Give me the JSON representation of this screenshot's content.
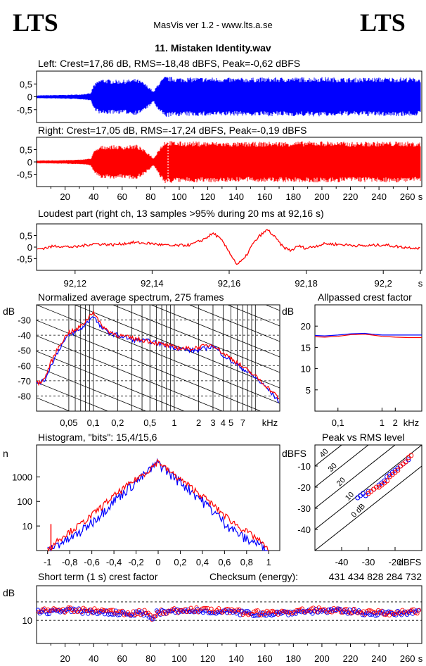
{
  "header": {
    "logo_left": "LTS",
    "logo_right": "LTS",
    "app": "MasVis ver 1.2 - www.lts.a.se",
    "track_title": "11. Mistaken Identity.wav"
  },
  "colors": {
    "left": "#0000ff",
    "right": "#ff0000",
    "axis": "#000000"
  },
  "chart_data": [
    {
      "id": "left-waveform",
      "type": "line",
      "title": "Left: Crest=17,86 dB, RMS=-18,48 dBFS, Peak=-0,62 dBFS",
      "xlim": [
        0,
        270
      ],
      "ylim": [
        -1,
        1
      ],
      "yticks": [
        "0,5",
        "0",
        "-0,5"
      ],
      "envelope_x": [
        0,
        10,
        20,
        30,
        38,
        40,
        45,
        50,
        55,
        60,
        65,
        70,
        75,
        80,
        82,
        85,
        90,
        95,
        100,
        120,
        140,
        160,
        180,
        200,
        220,
        240,
        260,
        267
      ],
      "envelope_amp": [
        0.06,
        0.07,
        0.08,
        0.1,
        0.15,
        0.5,
        0.75,
        0.72,
        0.7,
        0.7,
        0.72,
        0.75,
        0.6,
        0.35,
        0.2,
        0.55,
        0.85,
        0.82,
        0.8,
        0.8,
        0.78,
        0.8,
        0.8,
        0.82,
        0.78,
        0.8,
        0.8,
        0.78
      ]
    },
    {
      "id": "right-waveform",
      "type": "line",
      "title": "Right: Crest=17,05 dB, RMS=-17,24 dBFS, Peak=-0,19 dBFS",
      "xlim": [
        0,
        270
      ],
      "ylim": [
        -1,
        1
      ],
      "yticks": [
        "0,5",
        "0",
        "-0,5"
      ],
      "xticks": [
        "20",
        "40",
        "60",
        "80",
        "100",
        "120",
        "140",
        "160",
        "180",
        "200",
        "220",
        "240",
        "260",
        "s"
      ],
      "marker_x": 92.16,
      "envelope_x": [
        0,
        10,
        20,
        30,
        38,
        40,
        45,
        50,
        55,
        60,
        65,
        70,
        75,
        80,
        82,
        85,
        90,
        95,
        100,
        120,
        140,
        160,
        180,
        200,
        220,
        240,
        260,
        267
      ],
      "envelope_amp": [
        0.06,
        0.07,
        0.08,
        0.1,
        0.15,
        0.45,
        0.7,
        0.72,
        0.72,
        0.7,
        0.72,
        0.75,
        0.55,
        0.3,
        0.15,
        0.5,
        0.95,
        0.9,
        0.88,
        0.88,
        0.85,
        0.87,
        0.88,
        0.9,
        0.86,
        0.88,
        0.88,
        0.85
      ]
    },
    {
      "id": "loudest-part",
      "type": "line",
      "title": "Loudest part (right ch, 13 samples >95% during 20 ms at 92,16 s)",
      "xlim": [
        92.11,
        92.21
      ],
      "ylim": [
        -1,
        1
      ],
      "yticks": [
        "0,5",
        "0",
        "-0,5"
      ],
      "xticks": [
        "92,12",
        "92,14",
        "92,16",
        "92,18",
        "92,2",
        "s"
      ],
      "x": [
        92.11,
        92.115,
        92.12,
        92.125,
        92.13,
        92.135,
        92.14,
        92.145,
        92.15,
        92.153,
        92.156,
        92.158,
        92.16,
        92.162,
        92.164,
        92.166,
        92.168,
        92.17,
        92.172,
        92.174,
        92.176,
        92.178,
        92.18,
        92.185,
        92.19,
        92.195,
        92.2,
        92.205,
        92.21
      ],
      "y": [
        -0.1,
        0.05,
        0.0,
        0.15,
        0.1,
        0.2,
        0.15,
        0.05,
        0.1,
        0.3,
        0.6,
        0.3,
        -0.2,
        -0.75,
        -0.5,
        0.1,
        0.5,
        0.75,
        0.4,
        0.0,
        -0.15,
        0.05,
        -0.05,
        0.15,
        0.1,
        0.05,
        0.1,
        0.0,
        -0.05
      ]
    },
    {
      "id": "spectrum",
      "type": "line",
      "title": "Normalized average spectrum, 275 frames",
      "ylabel": "dB",
      "yticks": [
        "-30",
        "-40",
        "-50",
        "-60",
        "-70",
        "-80"
      ],
      "xticks": [
        "0,05",
        "0,1",
        "0,2",
        "0,5",
        "1",
        "2",
        "3",
        "4",
        "5",
        "7",
        "kHz"
      ],
      "xscale": "log",
      "xlim": [
        0.02,
        20
      ],
      "ylim": [
        -90,
        -20
      ],
      "x": [
        0.02,
        0.025,
        0.03,
        0.04,
        0.05,
        0.06,
        0.07,
        0.08,
        0.1,
        0.12,
        0.15,
        0.2,
        0.3,
        0.5,
        0.7,
        1,
        1.5,
        2,
        3,
        4,
        5,
        7,
        10,
        14,
        20
      ],
      "left": [
        -72,
        -70,
        -60,
        -47,
        -40,
        -38,
        -36,
        -33,
        -27,
        -34,
        -38,
        -40,
        -43,
        -44,
        -46,
        -48,
        -50,
        -50,
        -47,
        -53,
        -57,
        -62,
        -68,
        -75,
        -84
      ],
      "right": [
        -72,
        -69,
        -58,
        -45,
        -38,
        -37,
        -34,
        -31,
        -24,
        -32,
        -37,
        -40,
        -42,
        -44,
        -46,
        -48,
        -49,
        -48,
        -46,
        -52,
        -55,
        -61,
        -67,
        -74,
        -82
      ]
    },
    {
      "id": "allpassed-crest",
      "type": "line",
      "title": "Allpassed crest factor",
      "ylabel": "dB",
      "yticks": [
        "20",
        "15",
        "10",
        "5"
      ],
      "xticks": [
        "0,1",
        "1",
        "2",
        "kHz"
      ],
      "xscale": "log",
      "xlim": [
        0.03,
        8
      ],
      "ylim": [
        0,
        25
      ],
      "x": [
        0.03,
        0.05,
        0.1,
        0.2,
        0.4,
        0.6,
        1,
        2,
        4,
        8
      ],
      "left": [
        17.8,
        17.7,
        17.9,
        18.2,
        18.3,
        18.1,
        17.9,
        17.9,
        17.9,
        17.9
      ],
      "right": [
        17.5,
        17.4,
        17.6,
        18.0,
        18.1,
        17.9,
        17.6,
        17.4,
        17.3,
        17.3
      ]
    },
    {
      "id": "histogram",
      "type": "line",
      "title": "Histogram, \"bits\": 15,4/15,6",
      "ylabel": "n",
      "yscale": "log",
      "yticks": [
        "1000",
        "100",
        "10"
      ],
      "xticks": [
        "-1",
        "-0,8",
        "-0,6",
        "-0,4",
        "-0,2",
        "0",
        "0,2",
        "0,4",
        "0,6",
        "0,8",
        "1"
      ],
      "xlim": [
        -1.1,
        1.1
      ],
      "ylim": [
        1,
        20000
      ],
      "x": [
        -1.0,
        -0.9,
        -0.8,
        -0.7,
        -0.6,
        -0.5,
        -0.4,
        -0.3,
        -0.2,
        -0.1,
        -0.05,
        0,
        0.05,
        0.1,
        0.2,
        0.3,
        0.4,
        0.5,
        0.6,
        0.7,
        0.8,
        0.9,
        1.0
      ],
      "left": [
        1,
        2,
        3,
        6,
        15,
        40,
        110,
        280,
        650,
        1500,
        2500,
        4000,
        2500,
        1500,
        650,
        280,
        110,
        40,
        15,
        6,
        3,
        2,
        1
      ],
      "right": [
        1,
        3,
        6,
        12,
        28,
        70,
        170,
        380,
        800,
        1700,
        2700,
        4500,
        2700,
        1700,
        800,
        380,
        170,
        70,
        28,
        12,
        6,
        3,
        1
      ]
    },
    {
      "id": "peak-vs-rms",
      "type": "scatter",
      "title": "Peak vs RMS level",
      "ylabel": "dBFS",
      "xlabel": "dBFS",
      "yticks": [
        "-10",
        "-20",
        "-30",
        "-40"
      ],
      "xticks": [
        "-40",
        "-30",
        "-20"
      ],
      "diag_labels": [
        "40",
        "30",
        "20",
        "10",
        "0 dB"
      ],
      "xlim": [
        -50,
        -10
      ],
      "ylim": [
        -50,
        0
      ],
      "left_rms": [
        -34,
        -33,
        -32,
        -31,
        -30,
        -28,
        -26,
        -25,
        -24,
        -23,
        -22,
        -21,
        -20,
        -19,
        -18,
        -17,
        -16,
        -15
      ],
      "left_peak": [
        -25,
        -24,
        -23,
        -24,
        -22,
        -21,
        -19,
        -18,
        -17,
        -15,
        -14,
        -13,
        -12,
        -11,
        -10,
        -9,
        -8,
        -7
      ],
      "right_rms": [
        -30,
        -29,
        -28,
        -27,
        -26,
        -25,
        -24,
        -23,
        -22,
        -21,
        -20,
        -19,
        -18,
        -17,
        -16,
        -15,
        -14
      ],
      "right_peak": [
        -23,
        -22,
        -21,
        -20,
        -20,
        -19,
        -18,
        -17,
        -15,
        -14,
        -13,
        -12,
        -10,
        -9,
        -8,
        -6,
        -5
      ]
    },
    {
      "id": "short-term-crest",
      "type": "scatter",
      "title": "Short term (1 s) crest factor",
      "checksum_label": "Checksum (energy):",
      "checksum_value": "431 434 828 284 732",
      "ylabel": "dB",
      "yticks": [
        "10"
      ],
      "xticks": [
        "20",
        "40",
        "60",
        "80",
        "100",
        "120",
        "140",
        "160",
        "180",
        "200",
        "220",
        "240",
        "260",
        "s"
      ],
      "xlim": [
        0,
        270
      ],
      "ylim": [
        0,
        25
      ]
    }
  ]
}
